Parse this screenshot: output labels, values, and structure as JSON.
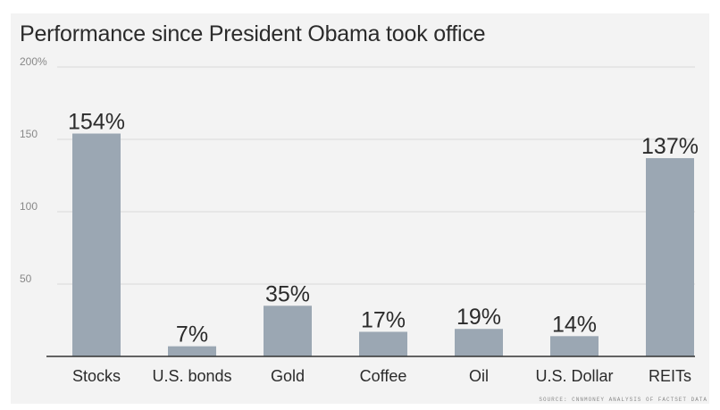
{
  "page": {
    "title": "Performance since President Obama took office",
    "source": "SOURCE: CNNMONEY ANALYSIS OF FACTSET DATA"
  },
  "colors": {
    "bar": "#9ba7b3",
    "grid": "#d9d9d9",
    "axis": "#333333",
    "text": "#2b2b2b",
    "tick_text": "#888888",
    "background": "#f3f3f3"
  },
  "chart_data": {
    "type": "bar",
    "title": "Performance since President Obama took office",
    "xlabel": "",
    "ylabel": "",
    "categories": [
      "Stocks",
      "U.S. bonds",
      "Gold",
      "Coffee",
      "Oil",
      "U.S. Dollar",
      "REITs"
    ],
    "values": [
      154,
      7,
      35,
      17,
      19,
      14,
      137
    ],
    "data_labels": [
      "154%",
      "7%",
      "35%",
      "17%",
      "19%",
      "14%",
      "137%"
    ],
    "ylim": [
      0,
      200
    ],
    "yticks": [
      50,
      100,
      150,
      200
    ],
    "ytick_labels": [
      "50",
      "100",
      "150",
      "200%"
    ],
    "grid": true,
    "legend": "none"
  }
}
